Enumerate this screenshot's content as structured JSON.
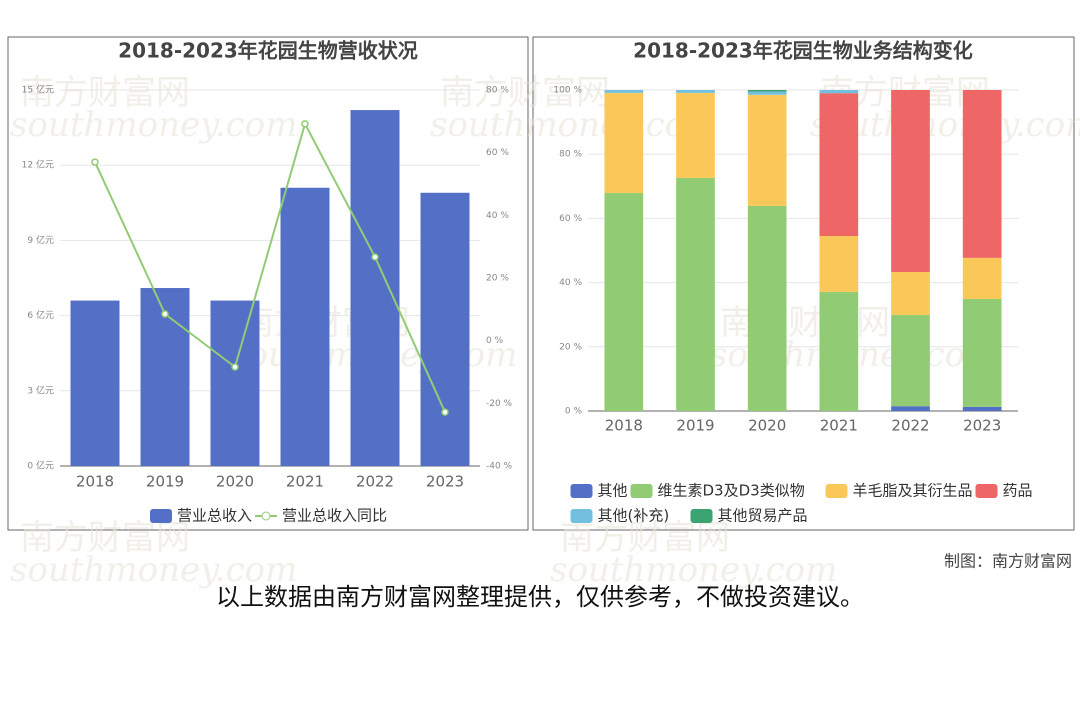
{
  "chart_data": [
    {
      "type": "bar",
      "title": "2018-2023年花园生物营收状况",
      "categories": [
        "2018",
        "2019",
        "2020",
        "2021",
        "2022",
        "2023"
      ],
      "series": [
        {
          "name": "营业总收入",
          "color": "#5470c6",
          "values": [
            6.6,
            7.1,
            6.6,
            11.1,
            14.2,
            10.9
          ]
        },
        {
          "name": "营业总收入同比",
          "color": "#91cc75",
          "type": "line",
          "axis": "y2",
          "values": [
            57.0,
            8.5,
            -8.4,
            69.2,
            26.7,
            -22.8
          ]
        }
      ],
      "ylim": [
        0,
        15
      ],
      "yticks": [
        {
          "value": 0,
          "label": "0 亿元"
        },
        {
          "value": 3,
          "label": "3 亿元"
        },
        {
          "value": 6,
          "label": "6 亿元"
        },
        {
          "value": 9,
          "label": "9 亿元"
        },
        {
          "value": 12,
          "label": "12 亿元"
        },
        {
          "value": 15,
          "label": "15 亿元"
        }
      ],
      "y2lim": [
        -40,
        80
      ],
      "y2ticks": [
        {
          "value": -40,
          "label": "-40 %"
        },
        {
          "value": -20,
          "label": "-20 %"
        },
        {
          "value": 0,
          "label": "0 %"
        },
        {
          "value": 20,
          "label": "20 %"
        },
        {
          "value": 40,
          "label": "40 %"
        },
        {
          "value": 60,
          "label": "60 %"
        },
        {
          "value": 80,
          "label": "80 %"
        }
      ],
      "grid": true,
      "legend": "bottom"
    },
    {
      "type": "stacked_bar",
      "title": "2018-2023年花园生物业务结构变化",
      "categories": [
        "2018",
        "2019",
        "2020",
        "2021",
        "2022",
        "2023"
      ],
      "series": [
        {
          "name": "其他",
          "color": "#5470c6",
          "values": [
            0,
            0,
            0,
            0,
            1.5,
            1.3
          ]
        },
        {
          "name": "维生素D3及D3类似物",
          "color": "#91cc75",
          "values": [
            67.9,
            72.6,
            63.9,
            37.1,
            28.4,
            33.6
          ]
        },
        {
          "name": "羊毛脂及其衍生品",
          "color": "#fac858",
          "values": [
            31.2,
            26.5,
            34.6,
            17.4,
            13.4,
            12.8
          ]
        },
        {
          "name": "药品",
          "color": "#ee6666",
          "values": [
            0,
            0,
            0,
            44.5,
            56.7,
            52.3
          ]
        },
        {
          "name": "其他(补充)",
          "color": "#73c0de",
          "values": [
            0.9,
            0.9,
            1.0,
            1.0,
            0,
            0
          ]
        },
        {
          "name": "其他贸易产品",
          "color": "#3ba272",
          "values": [
            0,
            0,
            0.5,
            0,
            0,
            0
          ]
        }
      ],
      "ylim": [
        0,
        100
      ],
      "yticks": [
        {
          "value": 0,
          "label": "0 %"
        },
        {
          "value": 20,
          "label": "20 %"
        },
        {
          "value": 40,
          "label": "40 %"
        },
        {
          "value": 60,
          "label": "60 %"
        },
        {
          "value": 80,
          "label": "80 %"
        },
        {
          "value": 100,
          "label": "100 %"
        }
      ],
      "grid": true,
      "legend": "bottom"
    }
  ],
  "watermark": [
    "南方财富网",
    "southmoney.com"
  ],
  "footer": {
    "credit": "制图：南方财富网",
    "note": "以上数据由南方财富网整理提供，仅供参考，不做投资建议。"
  }
}
